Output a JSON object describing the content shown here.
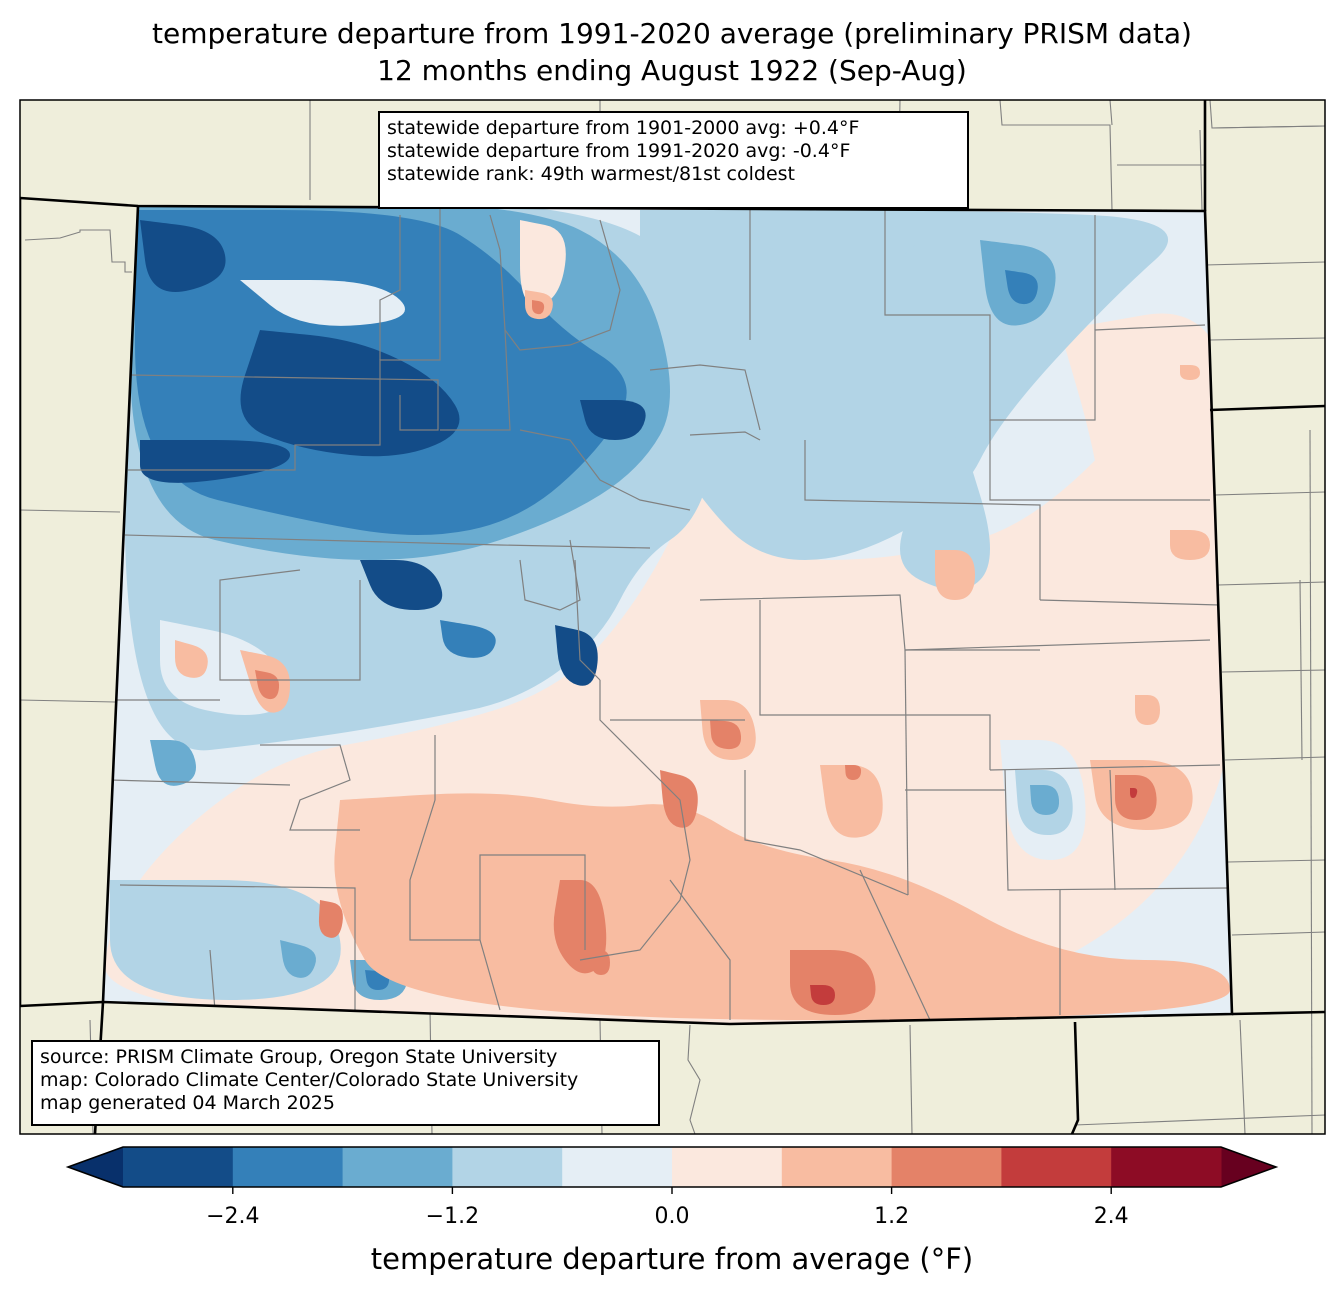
{
  "title": {
    "line1": "temperature departure from 1991-2020 average (preliminary PRISM data)",
    "line2": "12 months ending August 1922 (Sep-Aug)"
  },
  "stats_box": {
    "line1": "statewide departure from 1901-2000 avg: +0.4°F",
    "line2": "statewide departure from 1991-2020 avg: -0.4°F",
    "line3": "statewide rank: 49th warmest/81st coldest"
  },
  "source_box": {
    "line1": "source: PRISM Climate Group, Oregon State University",
    "line2": "map: Colorado Climate Center/Colorado State University",
    "line3": "map generated 04 March 2025"
  },
  "colors": {
    "land": "#efeedb",
    "state_border": "#000000",
    "county_border": "#808080"
  },
  "chart_data": {
    "type": "heatmap",
    "title": "temperature departure from 1991-2020 average (preliminary PRISM data)",
    "subtitle": "12 months ending August 1922 (Sep-Aug)",
    "region": "Colorado",
    "colorbar": {
      "label": "temperature departure from average (°F)",
      "orientation": "horizontal",
      "extend": "both",
      "range": [
        -3.0,
        3.0
      ],
      "boundaries": [
        -3.0,
        -2.4,
        -1.8,
        -1.2,
        -0.6,
        0.0,
        0.6,
        1.2,
        1.8,
        2.4,
        3.0
      ],
      "ticks": [
        -2.4,
        -1.2,
        0.0,
        1.2,
        2.4
      ],
      "tick_labels": [
        "−2.4",
        "−1.2",
        "0.0",
        "1.2",
        "2.4"
      ],
      "under_color": "#08306b",
      "over_color": "#67001f",
      "level_colors": [
        "#134c88",
        "#3480b9",
        "#6aacd0",
        "#b2d4e6",
        "#e5eef5",
        "#fbe8de",
        "#f8bca1",
        "#e48268",
        "#c33c3c",
        "#8d0c25"
      ]
    },
    "statewide": {
      "departure_1901_2000_F": 0.4,
      "departure_1991_2020_F": -0.4,
      "rank_warmest": 49,
      "rank_coldest": 81
    },
    "pattern_summary": [
      {
        "area": "northwest mountains",
        "level": "-3.0 to -1.8"
      },
      {
        "area": "northeast plains",
        "level": "-1.2 to 0.0"
      },
      {
        "area": "southeast plains",
        "level": "0.0 to 1.2"
      },
      {
        "area": "south-central (Spanish Peaks)",
        "level": "1.8 to 2.4"
      }
    ]
  }
}
